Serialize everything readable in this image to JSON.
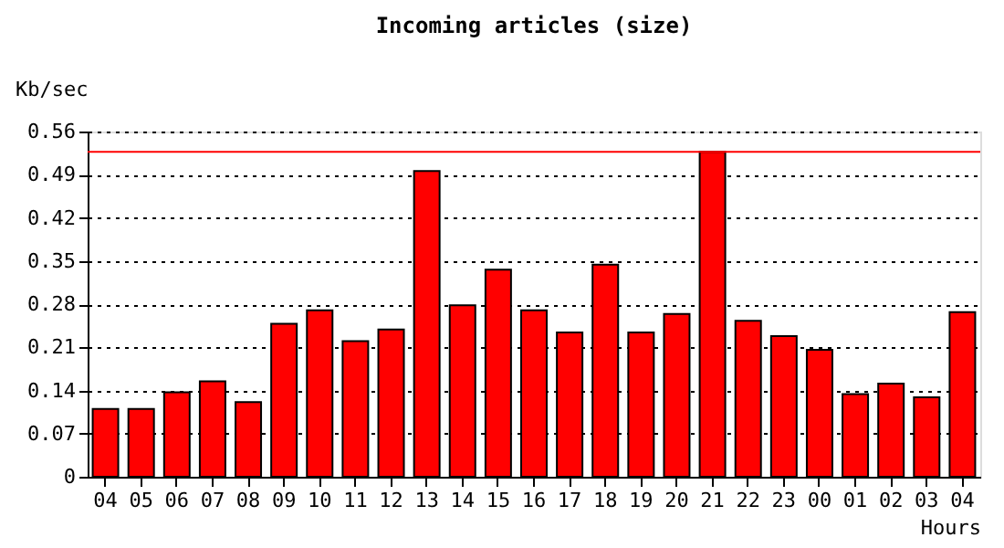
{
  "chart_data": {
    "type": "bar",
    "title": "Incoming articles (size)",
    "xlabel": "Hours",
    "ylabel": "Kb/sec",
    "categories": [
      "04",
      "05",
      "06",
      "07",
      "08",
      "09",
      "10",
      "11",
      "12",
      "13",
      "14",
      "15",
      "16",
      "17",
      "18",
      "19",
      "20",
      "21",
      "22",
      "23",
      "00",
      "01",
      "02",
      "03",
      "04"
    ],
    "values": [
      0.11,
      0.11,
      0.137,
      0.155,
      0.121,
      0.248,
      0.27,
      0.22,
      0.239,
      0.496,
      0.278,
      0.336,
      0.27,
      0.234,
      0.344,
      0.234,
      0.264,
      0.527,
      0.253,
      0.228,
      0.206,
      0.134,
      0.151,
      0.129,
      0.267
    ],
    "color": "#ff0000",
    "ylim": [
      0,
      0.56
    ],
    "yticks": [
      0,
      0.07,
      0.14,
      0.21,
      0.28,
      0.35,
      0.42,
      0.49,
      0.56
    ],
    "grid": "y",
    "line_style": "dotted",
    "ref_lines": [
      {
        "axis": "y",
        "value": 0.527,
        "color": "#ff0000"
      }
    ]
  }
}
